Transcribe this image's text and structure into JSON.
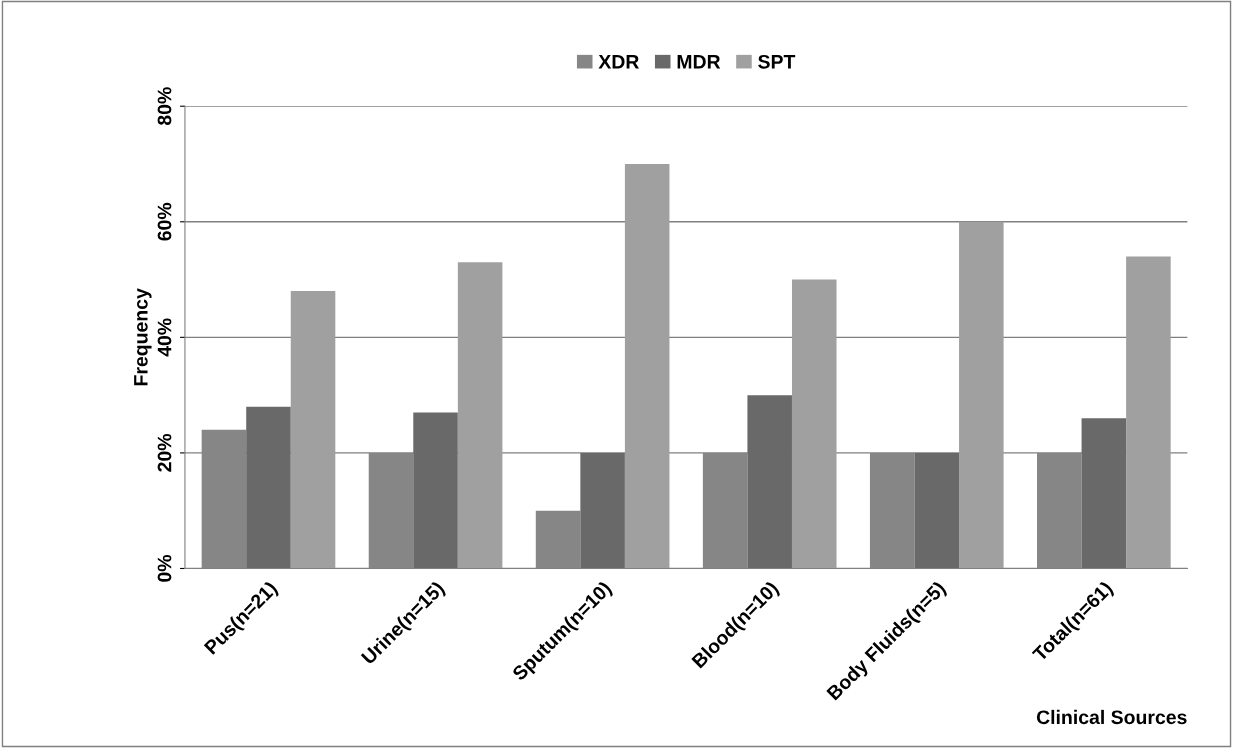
{
  "chart_data": {
    "type": "bar",
    "xlabel": "Clinical Sources",
    "ylabel": "Frequency",
    "categories": [
      "Pus(n=21)",
      "Urine(n=15)",
      "Sputum(n=10)",
      "Blood(n=10)",
      "Body Fluids(n=5)",
      "Total(n=61)"
    ],
    "series": [
      {
        "name": "XDR",
        "color": "#868686",
        "values": [
          24,
          20,
          10,
          20,
          20,
          20
        ]
      },
      {
        "name": "MDR",
        "color": "#696969",
        "values": [
          28,
          27,
          20,
          30,
          20,
          26
        ]
      },
      {
        "name": "SPT",
        "color": "#a0a0a0",
        "values": [
          48,
          53,
          70,
          50,
          60,
          54
        ]
      }
    ],
    "ylim": [
      0,
      80
    ],
    "yticks": [
      {
        "value": 0,
        "label": "0%"
      },
      {
        "value": 20,
        "label": "20%"
      },
      {
        "value": 40,
        "label": "40%"
      },
      {
        "value": 60,
        "label": "60%"
      },
      {
        "value": 80,
        "label": "80%"
      }
    ],
    "grid": "y",
    "legend": "top"
  }
}
